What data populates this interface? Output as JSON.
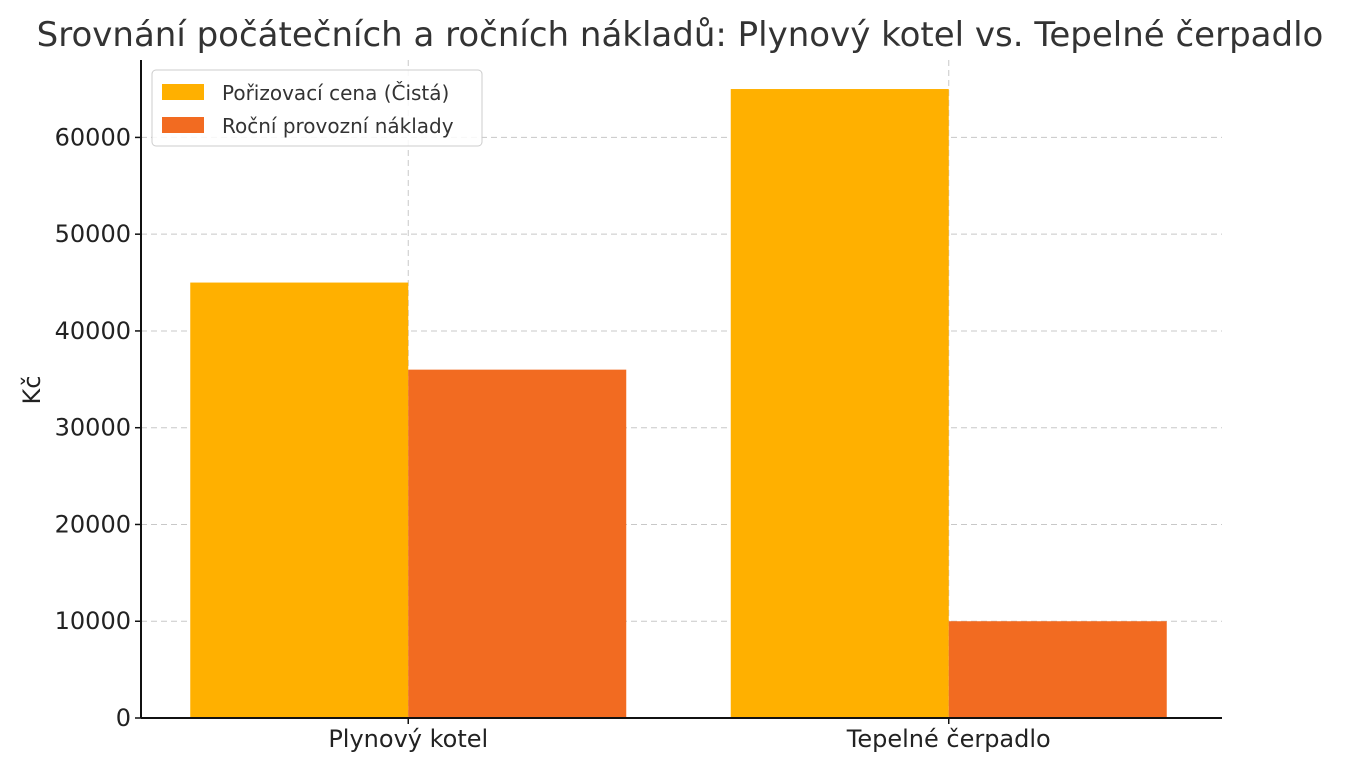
{
  "chart_data": {
    "type": "bar",
    "title": "Srovnání počátečních a ročních nákladů: Plynový kotel vs. Tepelné čerpadlo",
    "xlabel": "",
    "ylabel": "Kč",
    "categories": [
      "Plynový kotel",
      "Tepelné čerpadlo"
    ],
    "series": [
      {
        "name": "Pořizovací cena (Čistá)",
        "values": [
          45000,
          65000
        ],
        "color": "#FFB000"
      },
      {
        "name": "Roční provozní náklady",
        "values": [
          36000,
          10000
        ],
        "color": "#F26B21"
      }
    ],
    "ylim": [
      0,
      68000
    ],
    "yticks": [
      0,
      10000,
      20000,
      30000,
      40000,
      50000,
      60000
    ],
    "ytick_labels": [
      "0",
      "10000",
      "20000",
      "30000",
      "40000",
      "50000",
      "60000"
    ],
    "grid": true,
    "legend_position": "top-left"
  }
}
